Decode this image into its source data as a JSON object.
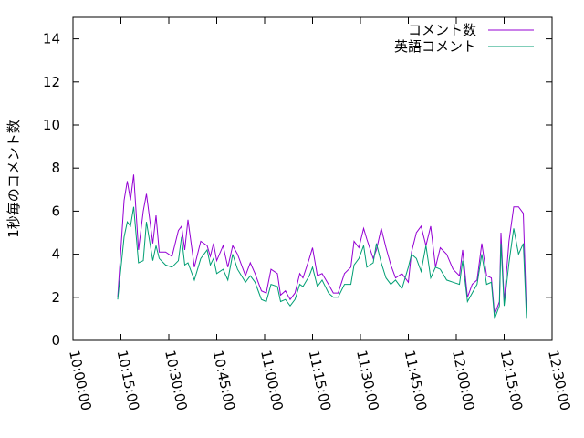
{
  "chart_data": {
    "type": "line",
    "ylabel": "1秒毎のコメント数",
    "x": [
      "10:14:00",
      "10:16:00",
      "10:17:00",
      "10:18:00",
      "10:19:00",
      "10:20:30",
      "10:22:00",
      "10:23:00",
      "10:25:00",
      "10:26:00",
      "10:27:00",
      "10:29:00",
      "10:31:00",
      "10:33:00",
      "10:34:00",
      "10:35:00",
      "10:36:00",
      "10:38:00",
      "10:40:00",
      "10:42:00",
      "10:43:00",
      "10:44:00",
      "10:45:00",
      "10:47:00",
      "10:48:30",
      "10:50:00",
      "10:51:30",
      "10:54:00",
      "10:55:30",
      "10:57:00",
      "10:59:00",
      "11:00:30",
      "11:02:00",
      "11:04:00",
      "11:05:00",
      "11:06:30",
      "11:08:00",
      "11:09:30",
      "11:11:00",
      "11:12:00",
      "11:14:00",
      "11:15:00",
      "11:16:30",
      "11:18:00",
      "11:20:00",
      "11:21:30",
      "11:23:00",
      "11:25:00",
      "11:27:00",
      "11:28:00",
      "11:29:30",
      "11:31:00",
      "11:32:00",
      "11:34:00",
      "11:35:00",
      "11:36:30",
      "11:38:00",
      "11:39:30",
      "11:41:00",
      "11:43:00",
      "11:45:00",
      "11:46:00",
      "11:47:30",
      "11:49:00",
      "11:50:30",
      "11:52:00",
      "11:53:30",
      "11:55:00",
      "11:57:00",
      "11:59:00",
      "12:01:00",
      "12:02:00",
      "12:03:30",
      "12:05:00",
      "12:06:30",
      "12:08:00",
      "12:09:30",
      "12:11:00",
      "12:12:00",
      "12:13:30",
      "12:14:00",
      "12:15:00",
      "12:16:30",
      "12:18:00",
      "12:19:30",
      "12:21:00",
      "12:22:00"
    ],
    "series": [
      {
        "name": "コメント数",
        "color": "#9400d3",
        "values": [
          2.0,
          6.5,
          7.4,
          6.5,
          7.7,
          4.2,
          6.0,
          6.8,
          4.5,
          5.8,
          4.1,
          4.1,
          3.9,
          5.1,
          5.3,
          4.2,
          5.6,
          3.4,
          4.6,
          4.4,
          3.9,
          4.5,
          3.7,
          4.4,
          3.4,
          4.4,
          4.0,
          3.0,
          3.6,
          3.1,
          2.3,
          2.2,
          3.3,
          3.1,
          2.1,
          2.3,
          1.9,
          2.2,
          3.1,
          2.9,
          3.8,
          4.3,
          3.0,
          3.1,
          2.6,
          2.2,
          2.2,
          3.1,
          3.4,
          4.6,
          4.3,
          5.2,
          4.7,
          3.8,
          4.2,
          5.2,
          4.3,
          3.5,
          2.9,
          3.1,
          2.7,
          4.1,
          5.0,
          5.3,
          4.4,
          5.3,
          3.4,
          4.3,
          4.0,
          3.3,
          3.0,
          4.2,
          2.0,
          2.6,
          2.8,
          4.5,
          3.0,
          2.9,
          1.2,
          1.8,
          5.0,
          1.8,
          4.6,
          6.2,
          6.2,
          5.9,
          1.2
        ]
      },
      {
        "name": "英語コメント",
        "color": "#009e73",
        "values": [
          1.9,
          4.8,
          5.5,
          5.3,
          6.2,
          3.6,
          3.7,
          5.5,
          3.7,
          4.4,
          3.8,
          3.5,
          3.4,
          3.7,
          4.8,
          3.5,
          3.6,
          2.8,
          3.8,
          4.2,
          3.5,
          3.8,
          3.1,
          3.3,
          2.8,
          4.0,
          3.3,
          2.7,
          3.0,
          2.7,
          1.9,
          1.8,
          2.6,
          2.5,
          1.8,
          1.9,
          1.6,
          1.9,
          2.6,
          2.5,
          3.0,
          3.4,
          2.5,
          2.8,
          2.2,
          2.0,
          2.0,
          2.6,
          2.6,
          3.5,
          3.8,
          4.4,
          3.4,
          3.6,
          4.5,
          3.6,
          2.9,
          2.6,
          2.8,
          2.4,
          3.4,
          4.0,
          3.8,
          3.2,
          4.4,
          2.9,
          3.4,
          3.3,
          2.8,
          2.7,
          2.6,
          3.7,
          1.8,
          2.2,
          2.6,
          4.0,
          2.6,
          2.7,
          1.0,
          1.6,
          4.5,
          1.6,
          3.6,
          5.2,
          4.0,
          4.5,
          1.0
        ]
      }
    ],
    "xlim": [
      "10:00:00",
      "12:30:00"
    ],
    "xticks": [
      "10:00:00",
      "10:15:00",
      "10:30:00",
      "10:45:00",
      "11:00:00",
      "11:15:00",
      "11:30:00",
      "11:45:00",
      "12:00:00",
      "12:15:00",
      "12:30:00"
    ],
    "ylim": [
      0,
      15
    ],
    "yticks": [
      0,
      2,
      4,
      6,
      8,
      10,
      12,
      14
    ],
    "legend": "top-right"
  }
}
